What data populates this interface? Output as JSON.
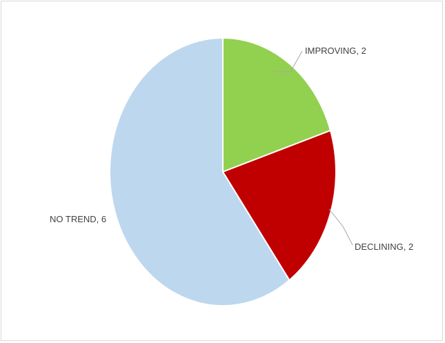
{
  "chart_data": {
    "type": "pie",
    "categories": [
      "IMPROVING",
      "DECLINING",
      "NO TREND"
    ],
    "values": [
      2,
      2,
      6
    ],
    "colors": [
      "#92d050",
      "#c00000",
      "#bdd7ee"
    ],
    "data_labels": [
      "IMPROVING, 2",
      "DECLINING, 2",
      "NO TREND, 6"
    ],
    "title": "",
    "legend": "none"
  }
}
